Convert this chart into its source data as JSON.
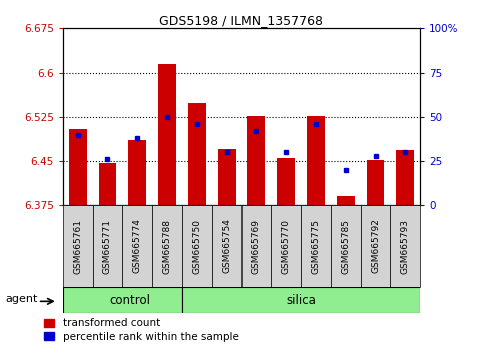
{
  "title": "GDS5198 / ILMN_1357768",
  "samples": [
    "GSM665761",
    "GSM665771",
    "GSM665774",
    "GSM665788",
    "GSM665750",
    "GSM665754",
    "GSM665769",
    "GSM665770",
    "GSM665775",
    "GSM665785",
    "GSM665792",
    "GSM665793"
  ],
  "groups": [
    "control",
    "control",
    "control",
    "control",
    "silica",
    "silica",
    "silica",
    "silica",
    "silica",
    "silica",
    "silica",
    "silica"
  ],
  "transformed_count": [
    6.505,
    6.447,
    6.485,
    6.615,
    6.548,
    6.47,
    6.527,
    6.455,
    6.527,
    6.39,
    6.452,
    6.468
  ],
  "percentile_rank": [
    40,
    26,
    38,
    50,
    46,
    30,
    42,
    30,
    46,
    20,
    28,
    30
  ],
  "y_min": 6.375,
  "y_max": 6.675,
  "y_ticks": [
    6.375,
    6.45,
    6.525,
    6.6,
    6.675
  ],
  "y2_ticks": [
    0,
    25,
    50,
    75,
    100
  ],
  "bar_color": "#cc0000",
  "blue_color": "#0000cc",
  "group_color": "#90ee90",
  "cell_color": "#d3d3d3",
  "legend_red": "transformed count",
  "legend_blue": "percentile rank within the sample",
  "agent_label": "agent",
  "control_label": "control",
  "silica_label": "silica",
  "n_control": 4,
  "n_silica": 8
}
